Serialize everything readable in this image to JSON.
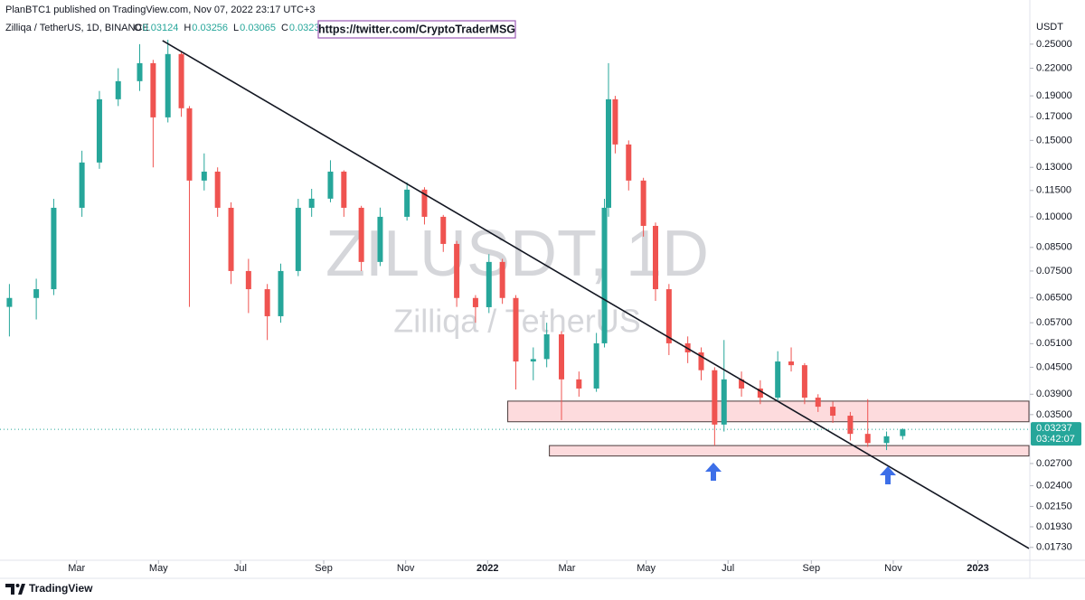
{
  "header": {
    "published": "PlanBTC1 published on TradingView.com, Nov 07, 2022 23:17 UTC+3",
    "symbol": "Zilliqa / TetherUS, 1D, BINANCE",
    "ohlc_labels": [
      "O",
      "H",
      "L",
      "C"
    ],
    "link": "https://twitter.com/CryptoTraderMSG"
  },
  "watermark": {
    "symbol": "ZILUSDT, 1D",
    "name": "Zilliqa / TetherUS"
  },
  "footer": {
    "brand": "TradingView"
  },
  "chart_data": {
    "type": "candlestick",
    "y_unit": "USDT",
    "log_scale": true,
    "grid": false,
    "up_color": "#26a69a",
    "down_color": "#ef5350",
    "countdown": "03:42:07",
    "x": [
      7,
      27,
      40,
      61,
      74,
      88,
      104,
      114,
      125,
      135,
      141,
      152,
      162,
      172,
      185,
      199,
      209,
      222,
      232,
      246,
      256,
      269,
      283,
      303,
      316,
      330,
      340,
      354,
      364,
      374,
      384,
      397,
      407,
      418,
      431,
      444,
      450,
      453,
      458,
      468,
      479,
      488,
      498,
      512,
      522,
      532,
      539,
      552,
      566,
      579,
      589,
      599,
      609,
      620,
      633,
      646,
      660,
      672
    ],
    "open": [
      0.062,
      0.065,
      0.0681,
      0.1049,
      0.1334,
      0.1866,
      0.2054,
      0.226,
      0.1695,
      0.2372,
      0.1779,
      0.1212,
      0.1271,
      0.1049,
      0.075,
      0.0681,
      0.059,
      0.075,
      0.1049,
      0.1101,
      0.1271,
      0.1049,
      0.0787,
      0.1,
      0.1155,
      0.1,
      0.0866,
      0.065,
      0.0619,
      0.0787,
      0.065,
      0.0464,
      0.047,
      0.0536,
      0.0422,
      0.0402,
      0.0511,
      0.1049,
      0.1866,
      0.1468,
      0.1212,
      0.0953,
      0.0681,
      0.0511,
      0.0487,
      0.0443,
      0.0332,
      0.0422,
      0.0402,
      0.0383,
      0.0464,
      0.0455,
      0.0383,
      0.0365,
      0.0348,
      0.0316,
      0.0301,
      0.03124
    ],
    "high": [
      0.07,
      0.072,
      0.11,
      0.142,
      0.195,
      0.22,
      0.25,
      0.23,
      0.256,
      0.24,
      0.18,
      0.14,
      0.13,
      0.108,
      0.08,
      0.07,
      0.078,
      0.11,
      0.116,
      0.135,
      0.128,
      0.106,
      0.105,
      0.12,
      0.117,
      0.101,
      0.088,
      0.066,
      0.082,
      0.08,
      0.066,
      0.05,
      0.057,
      0.0545,
      0.044,
      0.054,
      0.11,
      0.226,
      0.19,
      0.15,
      0.123,
      0.097,
      0.07,
      0.053,
      0.05,
      0.045,
      0.052,
      0.044,
      0.042,
      0.049,
      0.05,
      0.046,
      0.039,
      0.0375,
      0.0355,
      0.038,
      0.032,
      0.03256
    ],
    "low": [
      0.053,
      0.058,
      0.066,
      0.1,
      0.129,
      0.18,
      0.195,
      0.13,
      0.165,
      0.17,
      0.062,
      0.115,
      0.1,
      0.07,
      0.06,
      0.052,
      0.057,
      0.073,
      0.1,
      0.108,
      0.1,
      0.075,
      0.077,
      0.098,
      0.096,
      0.083,
      0.062,
      0.057,
      0.06,
      0.063,
      0.04,
      0.042,
      0.045,
      0.034,
      0.0385,
      0.0395,
      0.05,
      0.1,
      0.14,
      0.115,
      0.09,
      0.064,
      0.048,
      0.046,
      0.042,
      0.0297,
      0.032,
      0.0385,
      0.037,
      0.0375,
      0.044,
      0.037,
      0.0355,
      0.0335,
      0.0305,
      0.0295,
      0.029,
      0.03065
    ],
    "close": [
      0.065,
      0.0681,
      0.1049,
      0.1334,
      0.1866,
      0.2054,
      0.226,
      0.1695,
      0.2372,
      0.1779,
      0.1212,
      0.1271,
      0.1049,
      0.075,
      0.0681,
      0.059,
      0.075,
      0.1049,
      0.1101,
      0.1271,
      0.1049,
      0.0787,
      0.1,
      0.1155,
      0.1,
      0.0866,
      0.065,
      0.0619,
      0.0787,
      0.065,
      0.0464,
      0.047,
      0.0536,
      0.0422,
      0.0402,
      0.0511,
      0.1049,
      0.1866,
      0.1468,
      0.1212,
      0.0953,
      0.0681,
      0.0511,
      0.0487,
      0.0443,
      0.0332,
      0.0422,
      0.0402,
      0.0383,
      0.0464,
      0.0455,
      0.0383,
      0.0365,
      0.0348,
      0.0316,
      0.0301,
      0.0312,
      0.03237
    ],
    "xlim": [
      0,
      766
    ],
    "xticks": [
      {
        "value": 57,
        "label": "Mar"
      },
      {
        "value": 118,
        "label": "May"
      },
      {
        "value": 179,
        "label": "Jul"
      },
      {
        "value": 241,
        "label": "Sep"
      },
      {
        "value": 302,
        "label": "Nov"
      },
      {
        "value": 363,
        "label": "2022"
      },
      {
        "value": 422,
        "label": "Mar"
      },
      {
        "value": 481,
        "label": "May"
      },
      {
        "value": 542,
        "label": "Jul"
      },
      {
        "value": 604,
        "label": "Sep"
      },
      {
        "value": 665,
        "label": "Nov"
      },
      {
        "value": 728,
        "label": "2023"
      }
    ],
    "ylim": [
      0.01616,
      0.2763
    ],
    "yticks": [
      {
        "value": 0.25,
        "label": "0.25000"
      },
      {
        "value": 0.22,
        "label": "0.22000"
      },
      {
        "value": 0.19,
        "label": "0.19000"
      },
      {
        "value": 0.17,
        "label": "0.17000"
      },
      {
        "value": 0.15,
        "label": "0.15000"
      },
      {
        "value": 0.13,
        "label": "0.13000"
      },
      {
        "value": 0.115,
        "label": "0.11500"
      },
      {
        "value": 0.1,
        "label": "0.10000"
      },
      {
        "value": 0.085,
        "label": "0.08500"
      },
      {
        "value": 0.075,
        "label": "0.07500"
      },
      {
        "value": 0.065,
        "label": "0.06500"
      },
      {
        "value": 0.057,
        "label": "0.05700"
      },
      {
        "value": 0.051,
        "label": "0.05100"
      },
      {
        "value": 0.045,
        "label": "0.04500"
      },
      {
        "value": 0.039,
        "label": "0.03900"
      },
      {
        "value": 0.035,
        "label": "0.03500"
      },
      {
        "value": 0.027,
        "label": "0.02700"
      },
      {
        "value": 0.024,
        "label": "0.02400"
      },
      {
        "value": 0.0215,
        "label": "0.02150"
      },
      {
        "value": 0.0193,
        "label": "0.01930"
      },
      {
        "value": 0.0173,
        "label": "0.01730"
      }
    ],
    "zones": [
      {
        "x": [
          378,
          766
        ],
        "y": [
          0.0337,
          0.0376
        ]
      },
      {
        "x": [
          409,
          766
        ],
        "y": [
          0.0281,
          0.0297
        ]
      }
    ],
    "trendline": {
      "x": [
        121,
        766
      ],
      "y": [
        0.2548,
        0.0172
      ]
    }
  }
}
